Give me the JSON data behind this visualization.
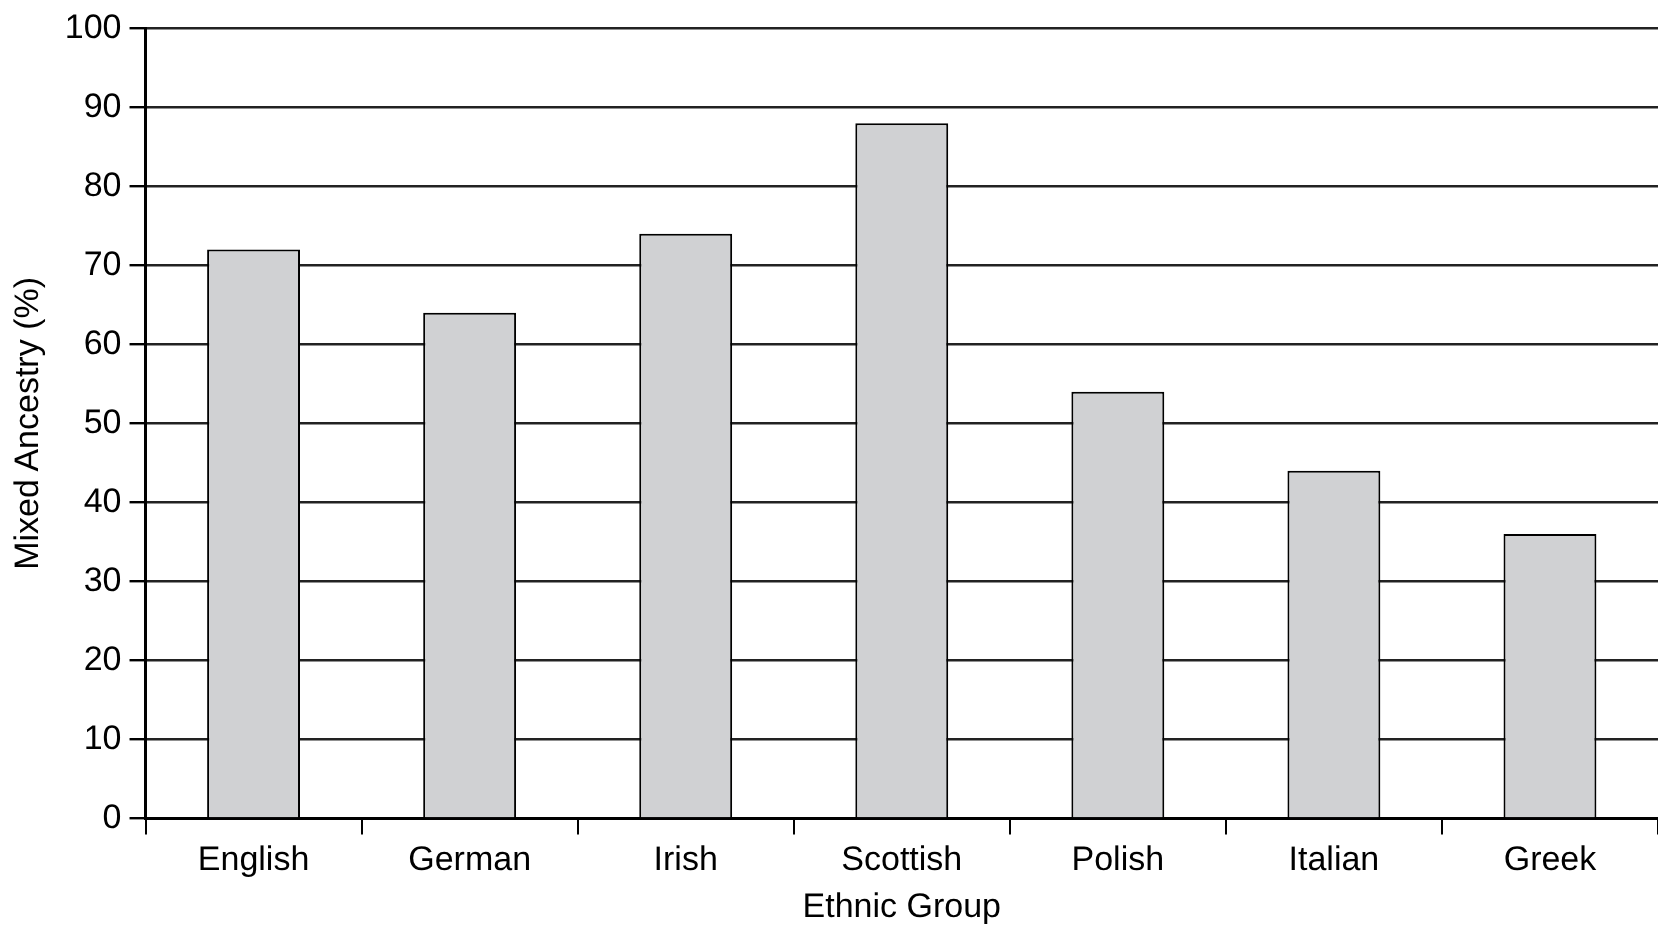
{
  "chart_data": {
    "type": "bar",
    "xlabel": "Ethnic Group",
    "ylabel": "Mixed Ancestry (%)",
    "categories": [
      "English",
      "German",
      "Irish",
      "Scottish",
      "Polish",
      "Italian",
      "Greek"
    ],
    "values": [
      72,
      64,
      74,
      88,
      54,
      44,
      36
    ],
    "color": "#d0d1d3",
    "ylim": [
      0,
      100
    ],
    "yticks": [
      0,
      10,
      20,
      30,
      40,
      50,
      60,
      70,
      80,
      90,
      100
    ],
    "grid": "y",
    "legend": false
  }
}
